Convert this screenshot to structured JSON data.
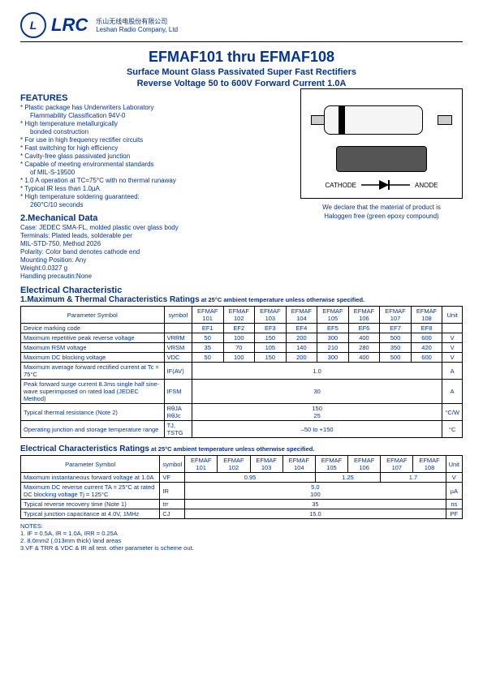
{
  "header": {
    "logo_text": "LRC",
    "company_cn": "乐山无线电股份有限公司",
    "company_en": "Leshan Radio Company, Ltd"
  },
  "title": "EFMAF101 thru EFMAF108",
  "subtitle1": "Surface Mount Glass Passivated Super Fast  Rectifiers",
  "subtitle2": "Reverse Voltage 50 to 600V Forward Current 1.0A",
  "sections": {
    "features": "FEATURES",
    "mech": "2.Mechanical Data",
    "elec": "Electrical Characteristic",
    "table1": "1.Maximum  & Thermal Characteristics Ratings",
    "table1_note": " at 25°C ambient temperature unless otherwise specified.",
    "table2": "Electrical Characteristics Ratings",
    "table2_note": " at 25°C ambient temperature unless otherwise specified."
  },
  "features": [
    "Plastic package has Underwriters Laboratory",
    "  Flammability Classification 94V-0",
    "High temperature metallurgically",
    "  bonded construction",
    "For use in high frequency rectifier circuits",
    "Fast switching for high efficiency",
    "Cavity-free glass passivated junction",
    "Capable of meeting environmental standards",
    "  of MIL-S-19500",
    "1.0 A operation at TC=75°C with no thermal runaway",
    "Typical IR less than 1.0µA",
    "High temperature soldering guaranteed:",
    "  260°C/10 seconds"
  ],
  "mech": {
    "case": "Case:  JEDEC SMA-FL, molded plastic over glass body",
    "terminals": "Terminals: Plated  leads, solderable per",
    "terminals2": "                          MIL-STD-750, Method 2026",
    "polarity": "Polarity: Color band denotes cathode end",
    "mounting": "Mounting Position: Any",
    "weight": "Weight:0.0327 g",
    "handling": "Handling precautin:None"
  },
  "declare1": "We declare that the material of product is",
  "declare2": "Haloggen free (green epoxy compound)",
  "symbol": {
    "cathode": "CATHODE",
    "anode": "ANODE"
  },
  "table1": {
    "headers": [
      "Parameter Symbol",
      "symbol",
      "EFMAF 101",
      "EFMAF 102",
      "EFMAF 103",
      "EFMAF 104",
      "EFMAF 105",
      "EFMAF 106",
      "EFMAF 107",
      "EFMAF 108",
      "Unit"
    ],
    "rows": [
      [
        "Device marking code",
        "",
        "EF1",
        "EF2",
        "EF3",
        "EF4",
        "EF5",
        "EF6",
        "EF7",
        "EF8",
        ""
      ],
      [
        "Maximum repetitive peak reverse voltage",
        "VRRM",
        "50",
        "100",
        "150",
        "200",
        "300",
        "400",
        "500",
        "600",
        "V"
      ],
      [
        "Maximum RSM voltage",
        "VRSM",
        "35",
        "70",
        "105",
        "140",
        "210",
        "280",
        "350",
        "420",
        "V"
      ],
      [
        "Maximum DC blocking voltage",
        "VDC",
        "50",
        "100",
        "150",
        "200",
        "300",
        "400",
        "500",
        "600",
        "V"
      ]
    ],
    "merged_rows": [
      {
        "label": "Maximum average forward rectified current at Tc = 75°C",
        "sym": "IF(AV)",
        "val": "1.0",
        "unit": "A"
      },
      {
        "label": "Peak forward surge current 8.3ms single half sine-wave superimposed on rated load (JEDEC Method)",
        "sym": "IFSM",
        "val": "30",
        "unit": "A"
      },
      {
        "label": "Typical thermal resistance (Note 2)",
        "sym": "RθJA\nRθJc",
        "val": "150\n25",
        "unit": "°C/W"
      },
      {
        "label": "Operating junction and storage temperature range",
        "sym": "TJ, TSTG",
        "val": "–50 to +150",
        "unit": "°C"
      }
    ]
  },
  "table2": {
    "headers": [
      "Parameter Symbol",
      "symbol",
      "EFMAF 101",
      "EFMAF 102",
      "EFMAF 103",
      "EFMAF 104",
      "EFMAF 105",
      "EFMAF 106",
      "EFMAF 107",
      "EFMAF 108",
      "Unit"
    ],
    "rows": [
      {
        "label": "Maximum instantaneous forward voltage at 1.0A",
        "sym": "VF",
        "vals": [
          "0.95",
          "1.25",
          "1.7"
        ],
        "spans": [
          4,
          2,
          2
        ],
        "unit": "V"
      },
      {
        "label": "Maximum DC reverse current TA = 25°C at rated DC blocking voltage Tj  = 125°C",
        "sym": "IR",
        "vals": [
          "5.0\n100"
        ],
        "spans": [
          8
        ],
        "unit": "µA"
      },
      {
        "label": "Typical reverse recovery time (Note 1)",
        "sym": "trr",
        "vals": [
          "35"
        ],
        "spans": [
          8
        ],
        "unit": "ns"
      },
      {
        "label": "Typical junction capacitance at 4.0V, 1MHz",
        "sym": "CJ",
        "vals": [
          "15.0"
        ],
        "spans": [
          8
        ],
        "unit": "PF"
      }
    ]
  },
  "notes": [
    "NOTES:",
    "1.  IF = 0.5A, IR = 1.0A, IRR = 0.25A",
    "2. 8.0mm2 (.013mm thick) land areas",
    "3.VF & TRR & VDC & IR   all test.   other parameter is  scheme out."
  ]
}
